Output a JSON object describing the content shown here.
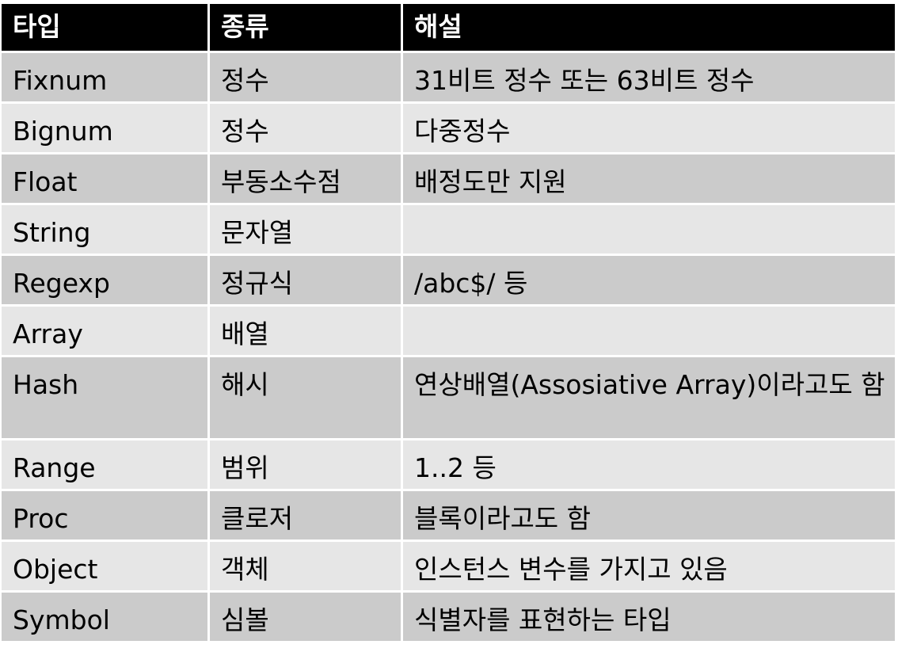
{
  "header": {
    "type": "타입",
    "kind": "종류",
    "description": "해설"
  },
  "rows": [
    {
      "type": "Fixnum",
      "kind": "정수",
      "description": "31비트 정수 또는 63비트 정수"
    },
    {
      "type": "Bignum",
      "kind": "정수",
      "description": "다중정수"
    },
    {
      "type": "Float",
      "kind": "부동소수점",
      "description": "배정도만 지원"
    },
    {
      "type": "String",
      "kind": "문자열",
      "description": ""
    },
    {
      "type": "Regexp",
      "kind": "정규식",
      "description": "/abc$/ 등"
    },
    {
      "type": "Array",
      "kind": "배열",
      "description": ""
    },
    {
      "type": "Hash",
      "kind": "해시",
      "description": "연상배열(Assosiative Array)이라고도 함"
    },
    {
      "type": "Range",
      "kind": "범위",
      "description": "1..2 등"
    },
    {
      "type": "Proc",
      "kind": "클로저",
      "description": "블록이라고도 함"
    },
    {
      "type": "Object",
      "kind": "객체",
      "description": "인스턴스 변수를 가지고 있음"
    },
    {
      "type": "Symbol",
      "kind": "심볼",
      "description": "식별자를 표현하는 타입"
    }
  ]
}
